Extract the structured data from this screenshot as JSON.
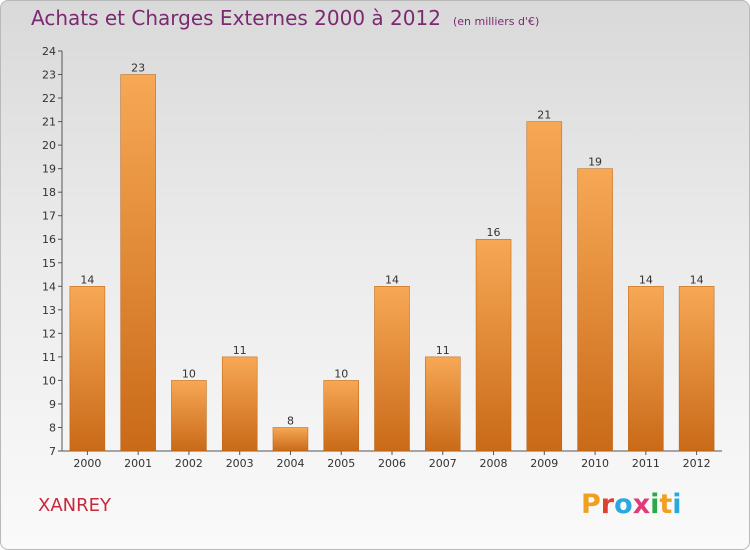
{
  "header": {
    "title": "Achats et Charges Externes 2000 à 2012",
    "subtitle": "(en milliers d'€)"
  },
  "footer": {
    "town": "XANREY",
    "logo": [
      "P",
      "r",
      "o",
      "x",
      "i",
      "t",
      "i"
    ],
    "logo_colors": [
      "#f0a020",
      "#e04030",
      "#2ca8e0",
      "#e03a78",
      "#2aa84a",
      "#f0a020",
      "#2ca8e0"
    ]
  },
  "chart_data": {
    "type": "bar",
    "title": "Achats et Charges Externes 2000 à 2012",
    "subtitle": "(en milliers d'€)",
    "categories": [
      "2000",
      "2001",
      "2002",
      "2003",
      "2004",
      "2005",
      "2006",
      "2007",
      "2008",
      "2009",
      "2010",
      "2011",
      "2012"
    ],
    "values": [
      14,
      23,
      10,
      11,
      8,
      10,
      14,
      11,
      16,
      21,
      19,
      14,
      14
    ],
    "ylim": [
      7,
      24
    ],
    "yticks": [
      7,
      8,
      9,
      10,
      11,
      12,
      13,
      14,
      15,
      16,
      17,
      18,
      19,
      20,
      21,
      22,
      23,
      24
    ],
    "bar_color_top": "#f7a855",
    "bar_color_bottom": "#c96a18",
    "grid": false
  }
}
